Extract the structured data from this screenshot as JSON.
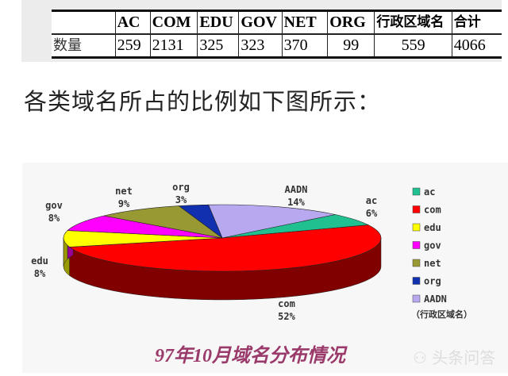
{
  "table": {
    "headers": [
      "",
      "AC",
      "COM",
      "EDU",
      "GOV",
      "NET",
      "ORG",
      "行政区域名",
      "合计"
    ],
    "row_label": "数量",
    "values": [
      "259",
      "2131",
      "325",
      "323",
      "370",
      "99",
      "559",
      "4066"
    ]
  },
  "heading": "各类域名所占的比例如下图所示：",
  "watermark": "头条问答",
  "chart_data": {
    "type": "pie",
    "style": "3d-exploded",
    "title": "97年10月域名分布情况",
    "slices": [
      {
        "name": "AADN",
        "label": "AADN",
        "percent": 14,
        "pct_label": "14%",
        "color": "#b8a8f0",
        "side": "#8878c0"
      },
      {
        "name": "ac",
        "label": "ac",
        "percent": 6,
        "pct_label": "6%",
        "color": "#20c090",
        "side": "#108060"
      },
      {
        "name": "com",
        "label": "com",
        "percent": 52,
        "pct_label": "52%",
        "color": "#ff0000",
        "side": "#800000"
      },
      {
        "name": "edu",
        "label": "edu",
        "percent": 8,
        "pct_label": "8%",
        "color": "#ffff00",
        "side": "#999900"
      },
      {
        "name": "gov",
        "label": "gov",
        "percent": 8,
        "pct_label": "8%",
        "color": "#ff00ff",
        "side": "#990099"
      },
      {
        "name": "net",
        "label": "net",
        "percent": 9,
        "pct_label": "9%",
        "color": "#999933",
        "side": "#666620"
      },
      {
        "name": "org",
        "label": "org",
        "percent": 3,
        "pct_label": "3%",
        "color": "#1030b0",
        "side": "#081860"
      }
    ],
    "legend": {
      "placement": "right",
      "items": [
        "ac",
        "com",
        "edu",
        "gov",
        "net",
        "org",
        "AADN"
      ],
      "note": "（行政区域名）"
    }
  }
}
